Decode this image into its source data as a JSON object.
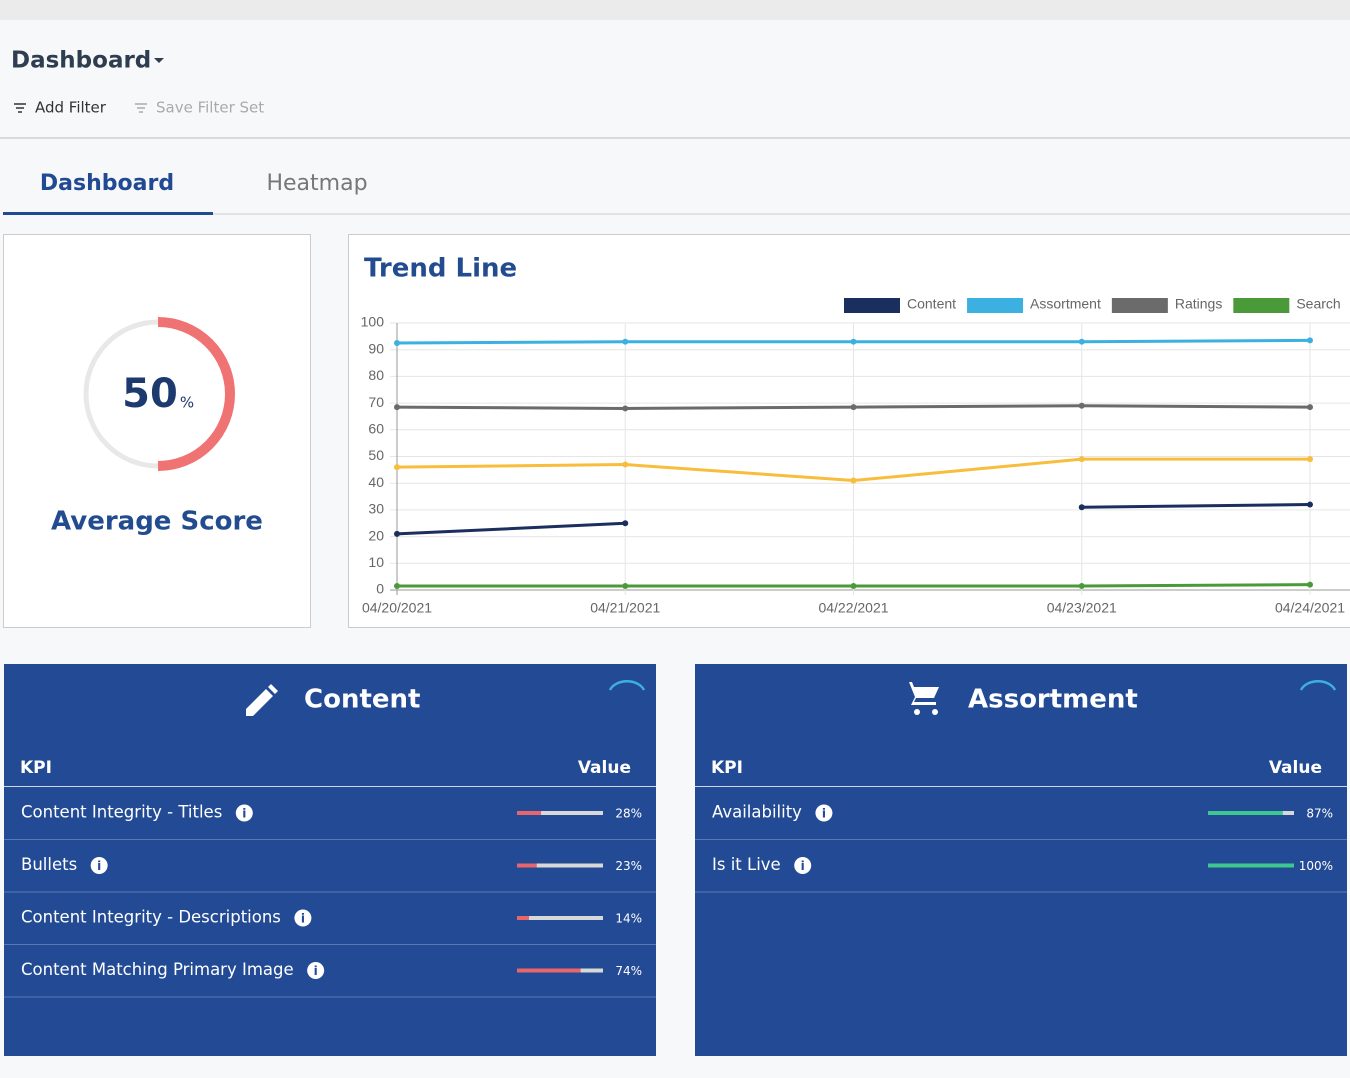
{
  "header": {
    "title": "Dashboard",
    "actions": [
      "Add Filter",
      "Save Filter Set"
    ]
  },
  "tabs": [
    "Dashboard",
    "Heatmap"
  ],
  "score": {
    "value": 50,
    "unit": "%",
    "label": "Average Score",
    "color": "#f07373"
  },
  "chart_data": {
    "type": "line",
    "title": "Trend Line",
    "categories": [
      "04/20/2021",
      "04/21/2021",
      "04/22/2021",
      "04/23/2021",
      "04/24/2021"
    ],
    "series": [
      {
        "name": "Content",
        "color": "#1b2f5e",
        "values": [
          21,
          25,
          null,
          31,
          32
        ]
      },
      {
        "name": "Assortment",
        "color": "#3cb0e0",
        "values": [
          92.5,
          93,
          93,
          93,
          93.5
        ]
      },
      {
        "name": "Ratings",
        "color": "#6b6b6b",
        "values": [
          68.5,
          68,
          68.5,
          69,
          68.5
        ]
      },
      {
        "name": "Search",
        "color": "#4a9a3a",
        "values": [
          1.5,
          1.5,
          1.5,
          1.5,
          2
        ]
      },
      {
        "color": "#f8bd3c",
        "values": [
          46,
          47,
          41,
          49,
          49
        ]
      }
    ],
    "ylim": [
      0,
      100
    ],
    "yticks": [
      0,
      10,
      20,
      30,
      40,
      50,
      60,
      70,
      80,
      90,
      100
    ],
    "grid": true
  },
  "panels": [
    {
      "title": "Content",
      "columns": [
        "KPI",
        "Value"
      ],
      "color": "#e8666b",
      "rows": [
        {
          "kpi": "Content Integrity - Titles",
          "value": 28,
          "value_label": "28%"
        },
        {
          "kpi": "Bullets",
          "value": 23,
          "value_label": "23%"
        },
        {
          "kpi": "Content Integrity - Descriptions",
          "value": 14,
          "value_label": "14%"
        },
        {
          "kpi": "Content Matching Primary Image",
          "value": 74,
          "value_label": "74%"
        }
      ]
    },
    {
      "title": "Assortment",
      "columns": [
        "KPI",
        "Value"
      ],
      "color": "#3cc88e",
      "rows": [
        {
          "kpi": "Availability",
          "value": 87,
          "value_label": "87%"
        },
        {
          "kpi": "Is it Live",
          "value": 100,
          "value_label": "100%"
        }
      ]
    }
  ]
}
